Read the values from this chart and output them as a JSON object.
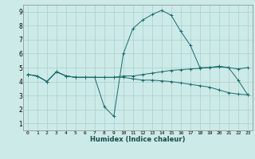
{
  "xlabel": "Humidex (Indice chaleur)",
  "bg_color": "#cceae7",
  "grid_color": "#aacfcc",
  "line_color": "#1a6b6b",
  "xlim": [
    -0.5,
    23.5
  ],
  "ylim": [
    0.5,
    9.5
  ],
  "xticks": [
    0,
    1,
    2,
    3,
    4,
    5,
    6,
    7,
    8,
    9,
    10,
    11,
    12,
    13,
    14,
    15,
    16,
    17,
    18,
    19,
    20,
    21,
    22,
    23
  ],
  "yticks": [
    1,
    2,
    3,
    4,
    5,
    6,
    7,
    8,
    9
  ],
  "line1_x": [
    0,
    1,
    2,
    3,
    4,
    5,
    6,
    7,
    8,
    9,
    10,
    11,
    12,
    13,
    14,
    15,
    16,
    17,
    18,
    19,
    20,
    21,
    22,
    23
  ],
  "line1_y": [
    4.5,
    4.4,
    4.0,
    4.7,
    4.4,
    4.3,
    4.3,
    4.3,
    4.3,
    4.3,
    4.4,
    4.4,
    4.5,
    4.6,
    4.7,
    4.8,
    4.85,
    4.9,
    4.95,
    5.0,
    5.1,
    5.0,
    4.9,
    5.0
  ],
  "line2_x": [
    0,
    1,
    2,
    3,
    4,
    5,
    6,
    7,
    8,
    9,
    10,
    11,
    12,
    13,
    14,
    15,
    16,
    17,
    18,
    19,
    20,
    21,
    22,
    23
  ],
  "line2_y": [
    4.5,
    4.4,
    4.0,
    4.7,
    4.4,
    4.3,
    4.3,
    4.3,
    2.2,
    1.5,
    6.0,
    7.8,
    8.4,
    8.8,
    9.1,
    8.75,
    7.6,
    6.6,
    5.0,
    5.0,
    5.05,
    5.0,
    4.1,
    3.05
  ],
  "line3_x": [
    0,
    1,
    2,
    3,
    4,
    5,
    6,
    7,
    8,
    9,
    10,
    11,
    12,
    13,
    14,
    15,
    16,
    17,
    18,
    19,
    20,
    21,
    22,
    23
  ],
  "line3_y": [
    4.5,
    4.4,
    4.0,
    4.7,
    4.4,
    4.3,
    4.3,
    4.3,
    4.3,
    4.3,
    4.3,
    4.2,
    4.1,
    4.1,
    4.05,
    4.0,
    3.9,
    3.8,
    3.7,
    3.6,
    3.4,
    3.2,
    3.1,
    3.05
  ]
}
